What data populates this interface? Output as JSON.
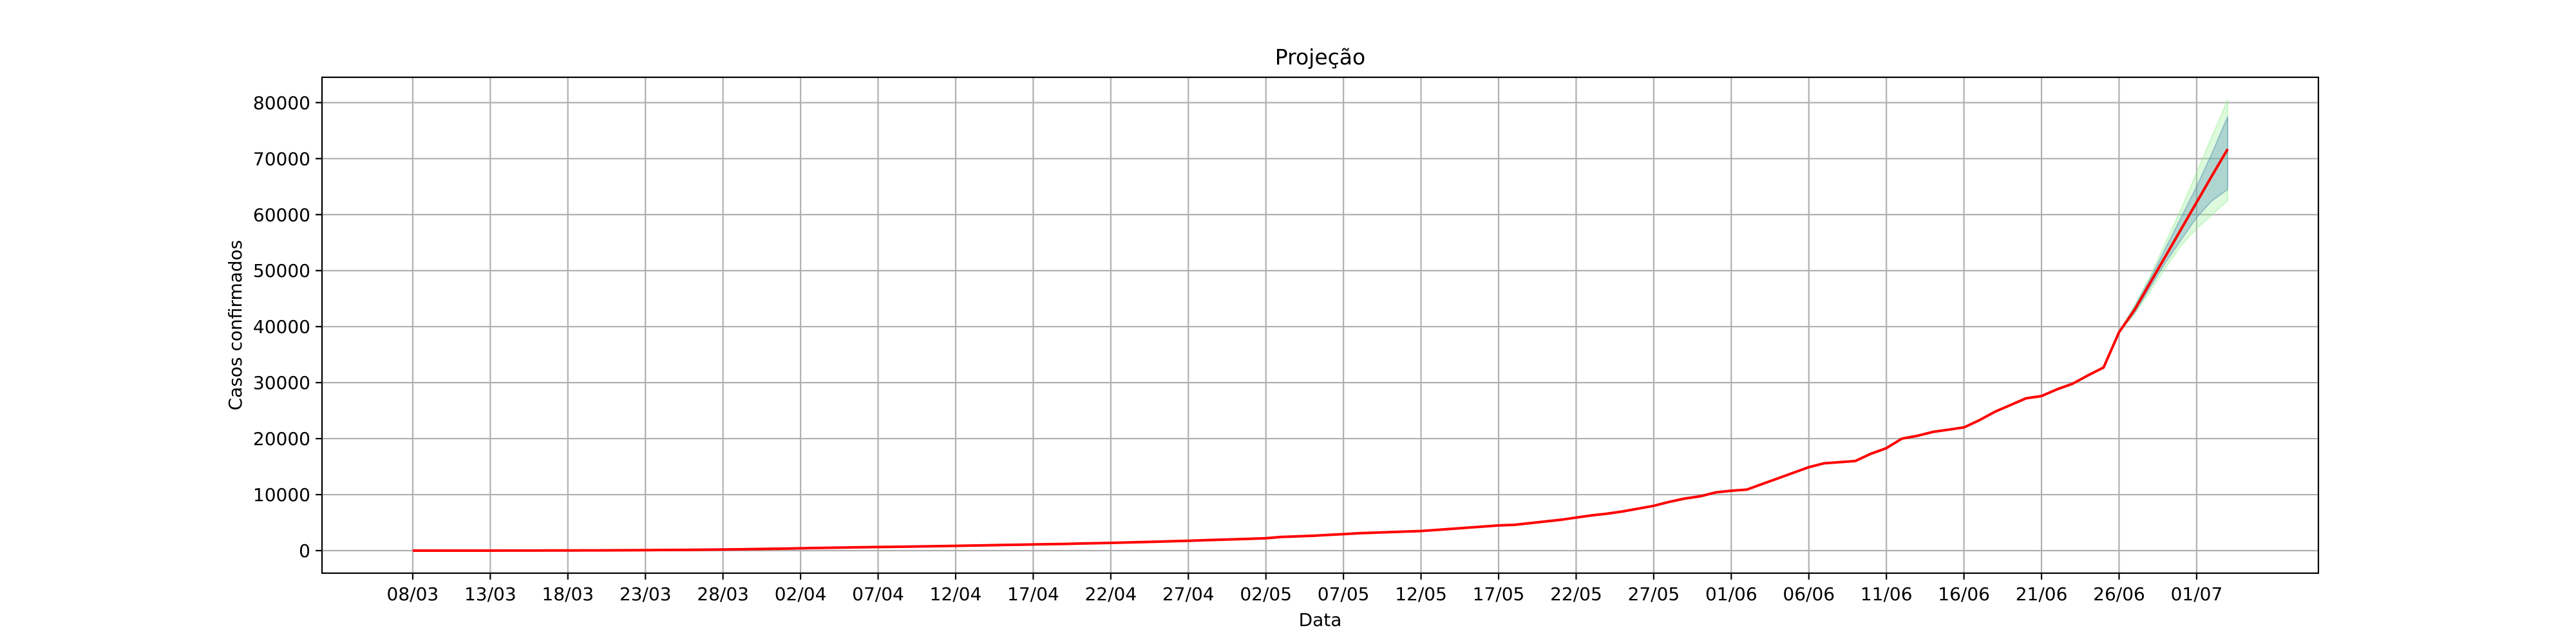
{
  "chart_data": {
    "type": "line",
    "title": "Projeção",
    "xlabel": "Data",
    "ylabel": "Casos confirmados",
    "categories": [
      "08/03",
      null,
      null,
      null,
      null,
      "13/03",
      null,
      null,
      null,
      null,
      "18/03",
      null,
      null,
      null,
      null,
      "23/03",
      null,
      null,
      null,
      null,
      "28/03",
      null,
      null,
      null,
      null,
      "02/04",
      null,
      null,
      null,
      null,
      "07/04",
      null,
      null,
      null,
      null,
      "12/04",
      null,
      null,
      null,
      null,
      "17/04",
      null,
      null,
      null,
      null,
      "22/04",
      null,
      null,
      null,
      null,
      "27/04",
      null,
      null,
      null,
      null,
      "02/05",
      null,
      null,
      null,
      null,
      "07/05",
      null,
      null,
      null,
      null,
      "12/05",
      null,
      null,
      null,
      null,
      "17/05",
      null,
      null,
      null,
      null,
      "22/05",
      null,
      null,
      null,
      null,
      "27/05",
      null,
      null,
      null,
      null,
      "01/06",
      null,
      null,
      null,
      null,
      "06/06",
      null,
      null,
      null,
      null,
      "11/06",
      null,
      null,
      null,
      null,
      "16/06",
      null,
      null,
      null,
      null,
      "21/06",
      null,
      null,
      null,
      null,
      "26/06",
      null,
      null,
      null,
      null,
      "01/07",
      null,
      null
    ],
    "values": [
      0,
      1,
      2,
      3,
      5,
      7,
      10,
      14,
      19,
      25,
      32,
      40,
      50,
      60,
      75,
      90,
      110,
      130,
      150,
      170,
      200,
      230,
      270,
      310,
      360,
      420,
      470,
      520,
      560,
      600,
      640,
      680,
      720,
      760,
      800,
      850,
      900,
      950,
      1000,
      1050,
      1100,
      1150,
      1200,
      1260,
      1320,
      1380,
      1450,
      1520,
      1600,
      1680,
      1760,
      1850,
      1940,
      2030,
      2120,
      2220,
      2450,
      2550,
      2650,
      2800,
      2950,
      3100,
      3200,
      3300,
      3400,
      3500,
      3700,
      3900,
      4100,
      4300,
      4500,
      4600,
      4900,
      5200,
      5500,
      5900,
      6300,
      6600,
      7000,
      7500,
      8000,
      8700,
      9300,
      9700,
      10400,
      10700,
      10900,
      11900,
      12900,
      13900,
      14900,
      15600,
      15800,
      16000,
      17300,
      18300,
      20000,
      20500,
      21200,
      21600,
      22000,
      23300,
      24800,
      26000,
      27200,
      27600,
      28800,
      29800,
      31300,
      32700,
      39000,
      43000,
      47800,
      52600,
      57400,
      62200,
      67000,
      71700
    ],
    "color": "#ff0000",
    "bands": [
      {
        "color": "#90ee90",
        "lower": [
          null,
          null,
          null,
          null,
          null,
          null,
          null,
          null,
          null,
          null,
          null,
          null,
          null,
          null,
          null,
          null,
          null,
          null,
          null,
          null,
          null,
          null,
          null,
          null,
          null,
          null,
          null,
          null,
          null,
          null,
          null,
          null,
          null,
          null,
          null,
          null,
          null,
          null,
          null,
          null,
          null,
          null,
          null,
          null,
          null,
          null,
          null,
          null,
          null,
          null,
          null,
          null,
          null,
          null,
          null,
          null,
          null,
          null,
          null,
          null,
          null,
          null,
          null,
          null,
          null,
          null,
          null,
          null,
          null,
          null,
          null,
          null,
          null,
          null,
          null,
          null,
          null,
          null,
          null,
          null,
          null,
          null,
          null,
          null,
          null,
          null,
          null,
          null,
          null,
          null,
          null,
          null,
          null,
          null,
          null,
          null,
          null,
          null,
          null,
          null,
          null,
          null,
          null,
          null,
          null,
          null,
          null,
          null,
          null,
          null,
          39000,
          42200,
          46300,
          50500,
          54500,
          57500,
          60000,
          62500
        ],
        "upper": [
          null,
          null,
          null,
          null,
          null,
          null,
          null,
          null,
          null,
          null,
          null,
          null,
          null,
          null,
          null,
          null,
          null,
          null,
          null,
          null,
          null,
          null,
          null,
          null,
          null,
          null,
          null,
          null,
          null,
          null,
          null,
          null,
          null,
          null,
          null,
          null,
          null,
          null,
          null,
          null,
          null,
          null,
          null,
          null,
          null,
          null,
          null,
          null,
          null,
          null,
          null,
          null,
          null,
          null,
          null,
          null,
          null,
          null,
          null,
          null,
          null,
          null,
          null,
          null,
          null,
          null,
          null,
          null,
          null,
          null,
          null,
          null,
          null,
          null,
          null,
          null,
          null,
          null,
          null,
          null,
          null,
          null,
          null,
          null,
          null,
          null,
          null,
          null,
          null,
          null,
          null,
          null,
          null,
          null,
          null,
          null,
          null,
          null,
          null,
          null,
          null,
          null,
          null,
          null,
          null,
          null,
          null,
          null,
          null,
          null,
          39000,
          43800,
          49000,
          55000,
          61000,
          67500,
          74000,
          80500
        ]
      },
      {
        "color": "#4682b4",
        "lower": [
          null,
          null,
          null,
          null,
          null,
          null,
          null,
          null,
          null,
          null,
          null,
          null,
          null,
          null,
          null,
          null,
          null,
          null,
          null,
          null,
          null,
          null,
          null,
          null,
          null,
          null,
          null,
          null,
          null,
          null,
          null,
          null,
          null,
          null,
          null,
          null,
          null,
          null,
          null,
          null,
          null,
          null,
          null,
          null,
          null,
          null,
          null,
          null,
          null,
          null,
          null,
          null,
          null,
          null,
          null,
          null,
          null,
          null,
          null,
          null,
          null,
          null,
          null,
          null,
          null,
          null,
          null,
          null,
          null,
          null,
          null,
          null,
          null,
          null,
          null,
          null,
          null,
          null,
          null,
          null,
          null,
          null,
          null,
          null,
          null,
          null,
          null,
          null,
          null,
          null,
          null,
          null,
          null,
          null,
          null,
          null,
          null,
          null,
          null,
          null,
          null,
          null,
          null,
          null,
          null,
          null,
          null,
          null,
          null,
          null,
          39000,
          42500,
          47000,
          51500,
          55500,
          59500,
          62500,
          64500
        ],
        "upper": [
          null,
          null,
          null,
          null,
          null,
          null,
          null,
          null,
          null,
          null,
          null,
          null,
          null,
          null,
          null,
          null,
          null,
          null,
          null,
          null,
          null,
          null,
          null,
          null,
          null,
          null,
          null,
          null,
          null,
          null,
          null,
          null,
          null,
          null,
          null,
          null,
          null,
          null,
          null,
          null,
          null,
          null,
          null,
          null,
          null,
          null,
          null,
          null,
          null,
          null,
          null,
          null,
          null,
          null,
          null,
          null,
          null,
          null,
          null,
          null,
          null,
          null,
          null,
          null,
          null,
          null,
          null,
          null,
          null,
          null,
          null,
          null,
          null,
          null,
          null,
          null,
          null,
          null,
          null,
          null,
          null,
          null,
          null,
          null,
          null,
          null,
          null,
          null,
          null,
          null,
          null,
          null,
          null,
          null,
          null,
          null,
          null,
          null,
          null,
          null,
          null,
          null,
          null,
          null,
          null,
          null,
          null,
          null,
          null,
          null,
          39000,
          43500,
          48500,
          54000,
          59500,
          65000,
          71000,
          77500
        ]
      }
    ],
    "xlim": [
      -5.85,
      122.85
    ],
    "ylim": [
      -4025,
      84525
    ],
    "yticks": [
      0,
      10000,
      20000,
      30000,
      40000,
      50000,
      60000,
      70000,
      80000
    ],
    "grid": true
  }
}
